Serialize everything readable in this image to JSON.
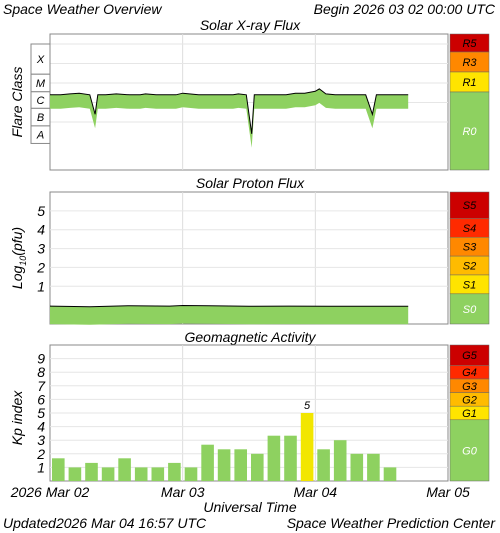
{
  "header": {
    "title": "Space Weather Overview",
    "begin_label": "Begin",
    "begin_date": "2026 03 02 00:00 UTC"
  },
  "footer": {
    "updated_label": "Updated",
    "updated_date": "2026 Mar 04 16:57 UTC",
    "source": "Space Weather Prediction Center"
  },
  "chart_data": [
    {
      "type": "line",
      "title": "Solar X-ray Flux",
      "ylabel": "Flare Class",
      "class_labels": [
        "X",
        "M",
        "C",
        "B",
        "A"
      ],
      "class_order": [
        "A",
        "B",
        "C",
        "M",
        "X"
      ],
      "xlim_days": [
        0,
        3
      ],
      "series": [
        {
          "color": "#000000",
          "fill": "#8ed160",
          "points": [
            [
              0.0,
              "C1.0"
            ],
            [
              0.08,
              "C1.0"
            ],
            [
              0.15,
              "C1.1"
            ],
            [
              0.22,
              "C1.2"
            ],
            [
              0.3,
              "C1.0"
            ],
            [
              0.34,
              "B1.0"
            ],
            [
              0.36,
              "C1.0"
            ],
            [
              0.42,
              "C1.0"
            ],
            [
              0.5,
              "C1.1"
            ],
            [
              0.6,
              "C1.0"
            ],
            [
              0.68,
              "C1.0"
            ],
            [
              0.72,
              "C1.1"
            ],
            [
              0.8,
              "C1.0"
            ],
            [
              0.88,
              "C1.0"
            ],
            [
              0.95,
              "C1.0"
            ],
            [
              1.0,
              "C1.2"
            ],
            [
              1.05,
              "C1.1"
            ],
            [
              1.12,
              "C1.0"
            ],
            [
              1.2,
              "C1.0"
            ],
            [
              1.3,
              "C1.0"
            ],
            [
              1.38,
              "C1.0"
            ],
            [
              1.42,
              "C1.1"
            ],
            [
              1.48,
              "C1.0"
            ],
            [
              1.52,
              "A1.0"
            ],
            [
              1.54,
              "C1.0"
            ],
            [
              1.6,
              "C1.0"
            ],
            [
              1.7,
              "C1.0"
            ],
            [
              1.78,
              "C1.0"
            ],
            [
              1.85,
              "C1.2"
            ],
            [
              1.92,
              "C1.2"
            ],
            [
              2.0,
              "C1.5"
            ],
            [
              2.03,
              "C2.0"
            ],
            [
              2.08,
              "C1.1"
            ],
            [
              2.15,
              "C1.0"
            ],
            [
              2.22,
              "C1.0"
            ],
            [
              2.3,
              "C1.0"
            ],
            [
              2.38,
              "C1.0"
            ],
            [
              2.43,
              "B1.0"
            ],
            [
              2.46,
              "C1.0"
            ],
            [
              2.55,
              "C1.0"
            ],
            [
              2.65,
              "C1.0"
            ],
            [
              2.7,
              "C1.0"
            ]
          ]
        }
      ],
      "scale_labels": [
        "R5",
        "R3",
        "R1",
        "R0"
      ]
    },
    {
      "type": "line",
      "title": "Solar Proton Flux",
      "ylabel": "Log10(pfu)",
      "ylabel_parts": {
        "pre": "Log",
        "sub": "10",
        "post": "(pfu)"
      },
      "yticks": [
        "1",
        "2",
        "3",
        "4",
        "5"
      ],
      "ylim": [
        -1,
        6
      ],
      "xlim_days": [
        0,
        3
      ],
      "series": [
        {
          "color": "#000000",
          "fill": "#8ed160",
          "x": [
            0.0,
            0.3,
            0.6,
            0.9,
            1.0,
            1.2,
            1.5,
            1.8,
            2.1,
            2.4,
            2.7
          ],
          "y": [
            -0.05,
            -0.08,
            -0.03,
            -0.05,
            -0.02,
            -0.03,
            -0.06,
            -0.05,
            -0.06,
            -0.06,
            -0.06
          ]
        }
      ],
      "scale_labels": [
        "S5",
        "S4",
        "S3",
        "S2",
        "S1",
        "S0"
      ]
    },
    {
      "type": "bar",
      "title": "Geomagnetic Activity",
      "ylabel": "Kp index",
      "yticks": [
        "1",
        "2",
        "3",
        "4",
        "5",
        "6",
        "7",
        "8",
        "9"
      ],
      "ylim": [
        0,
        10
      ],
      "xlabel": "Universal Time",
      "xtick_labels": [
        "2026 Mar 02",
        "Mar 03",
        "Mar 04",
        "Mar 05"
      ],
      "bar_interval_hours": 3,
      "values": [
        1.67,
        1.0,
        1.33,
        1.0,
        1.67,
        1.0,
        1.0,
        1.33,
        1.0,
        2.67,
        2.33,
        2.33,
        2.0,
        3.33,
        3.33,
        5.0,
        2.33,
        3.0,
        2.0,
        2.0,
        1.0
      ],
      "data_labels": [
        {
          "index": 15,
          "text": "5"
        }
      ],
      "colors": {
        "quiet": "#8ed160",
        "active": "#f2e600"
      },
      "scale_labels": [
        "G5",
        "G4",
        "G3",
        "G2",
        "G1",
        "G0"
      ]
    }
  ],
  "scale_colors": {
    "extreme": "#cc0000",
    "severe": "#ff2a00",
    "strong": "#ff8800",
    "moderate": "#ffbb00",
    "minor": "#ffe400",
    "none": "#8ed160"
  }
}
